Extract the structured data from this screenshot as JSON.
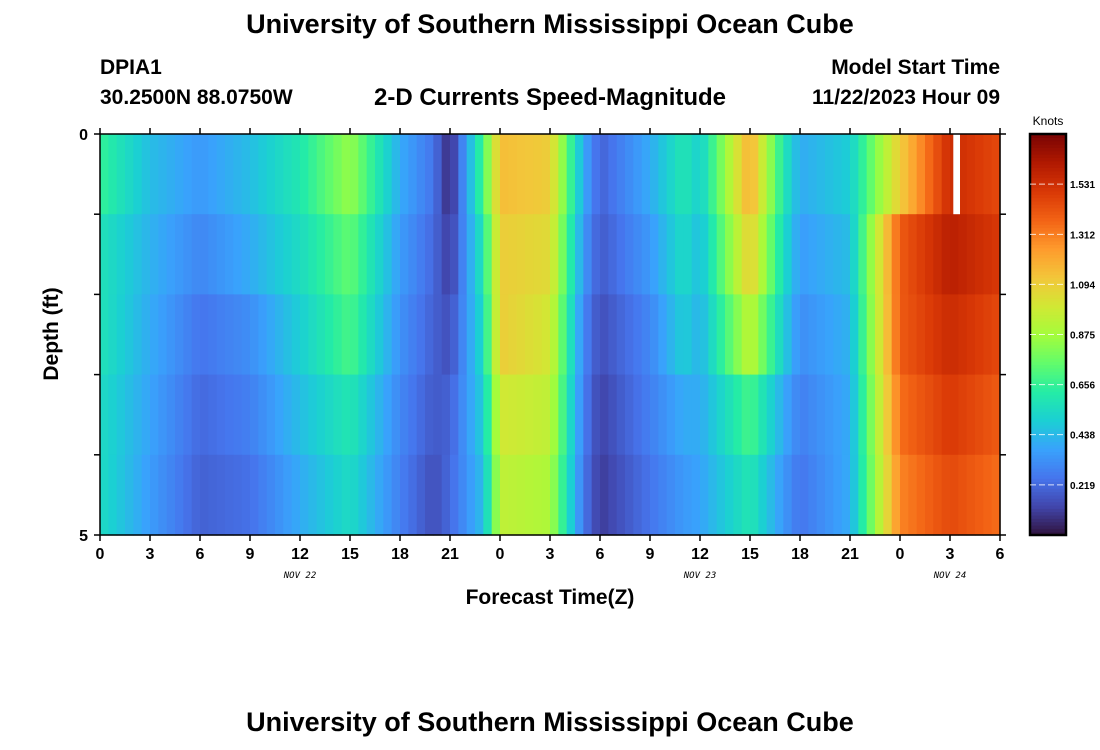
{
  "page": {
    "title": "University of Southern Mississippi Ocean Cube",
    "station": "DPIA1",
    "coordinates": "30.2500N  88.0750W",
    "subtitle": "2-D Currents Speed-Magnitude",
    "model_start_label": "Model Start Time",
    "model_start_value": "11/22/2023 Hour 09",
    "footer_title": "University of Southern Mississippi Ocean Cube"
  },
  "chart_data": {
    "type": "heatmap",
    "xlabel": "Forecast Time(Z)",
    "ylabel": "Depth (ft)",
    "x_tick_labels": [
      "0",
      "3",
      "6",
      "9",
      "12",
      "15",
      "18",
      "21",
      "0",
      "3",
      "6",
      "9",
      "12",
      "15",
      "18",
      "21",
      "0",
      "3",
      "6"
    ],
    "date_labels": [
      {
        "label": "NOV 22",
        "at_hour": 12
      },
      {
        "label": "NOV 23",
        "at_hour": 36
      },
      {
        "label": "NOV 24",
        "at_hour": 51
      }
    ],
    "x_range_hours": [
      0,
      54
    ],
    "y_tick_labels": [
      "0",
      "5"
    ],
    "y_range_ft": [
      0,
      5
    ],
    "depth_levels_ft": [
      0,
      1,
      2,
      3,
      4,
      5
    ],
    "colorbar": {
      "title": "Knots",
      "range": [
        0.0,
        1.75
      ],
      "tick_labels": [
        "1.531",
        "1.312",
        "1.094",
        "0.875",
        "0.656",
        "0.438",
        "0.219"
      ]
    },
    "colormap": [
      "#30123b",
      "#4145ab",
      "#4675ed",
      "#39a2fc",
      "#1bcfd4",
      "#24eca6",
      "#61fc6c",
      "#a4fc3b",
      "#d1e834",
      "#f3c63a",
      "#fe9b2d",
      "#f36315",
      "#d93806",
      "#b11901",
      "#7a0403"
    ],
    "speed_profile_knots": [
      [
        0,
        0.66,
        0.58,
        0.58,
        0.55,
        0.55,
        0.55
      ],
      [
        3,
        0.45,
        0.42,
        0.4,
        0.38,
        0.36,
        0.34
      ],
      [
        6,
        0.35,
        0.3,
        0.25,
        0.22,
        0.2,
        0.15
      ],
      [
        9,
        0.45,
        0.4,
        0.32,
        0.28,
        0.24,
        0.2
      ],
      [
        12,
        0.6,
        0.55,
        0.5,
        0.45,
        0.4,
        0.35
      ],
      [
        15,
        0.85,
        0.75,
        0.7,
        0.6,
        0.55,
        0.5
      ],
      [
        18,
        0.4,
        0.36,
        0.33,
        0.3,
        0.28,
        0.26
      ],
      [
        20,
        0.25,
        0.22,
        0.2,
        0.18,
        0.15,
        0.12
      ],
      [
        21,
        0.05,
        0.1,
        0.15,
        0.2,
        0.22,
        0.2
      ],
      [
        23,
        0.7,
        0.6,
        0.55,
        0.5,
        0.45,
        0.4
      ],
      [
        24,
        1.15,
        1.1,
        1.1,
        1.0,
        0.95,
        0.8
      ],
      [
        27,
        1.1,
        1.05,
        1.0,
        0.95,
        0.9,
        0.7
      ],
      [
        29,
        0.4,
        0.35,
        0.3,
        0.28,
        0.26,
        0.2
      ],
      [
        30,
        0.2,
        0.18,
        0.15,
        0.12,
        0.1,
        0.05
      ],
      [
        33,
        0.4,
        0.35,
        0.3,
        0.28,
        0.25,
        0.22
      ],
      [
        35,
        0.6,
        0.55,
        0.5,
        0.4,
        0.35,
        0.3
      ],
      [
        36,
        0.5,
        0.45,
        0.42,
        0.4,
        0.38,
        0.35
      ],
      [
        39,
        1.2,
        1.1,
        0.95,
        0.7,
        0.6,
        0.45
      ],
      [
        41,
        0.6,
        0.55,
        0.5,
        0.4,
        0.35,
        0.2
      ],
      [
        42,
        0.4,
        0.36,
        0.32,
        0.28,
        0.25,
        0.2
      ],
      [
        45,
        0.5,
        0.45,
        0.42,
        0.4,
        0.4,
        0.35
      ],
      [
        48,
        1.1,
        1.4,
        1.4,
        1.35,
        1.3,
        1.2
      ],
      [
        51,
        1.55,
        1.6,
        1.55,
        1.5,
        1.45,
        1.4
      ],
      [
        54,
        1.45,
        1.5,
        1.45,
        1.4,
        1.35,
        1.3
      ]
    ],
    "missing_cell": {
      "hour": 51,
      "depth_ft": [
        0,
        1
      ]
    }
  }
}
